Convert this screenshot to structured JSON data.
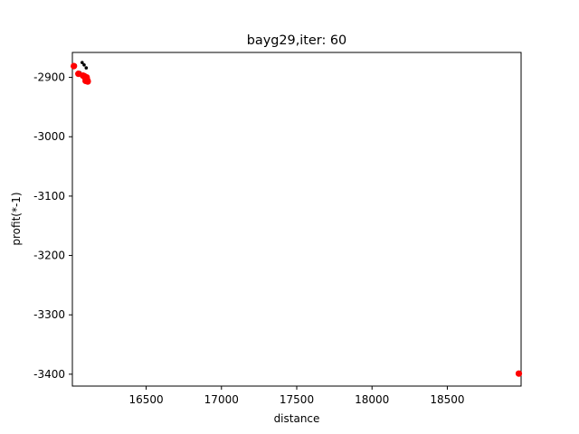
{
  "chart_data": {
    "type": "scatter",
    "title": "bayg29,iter: 60",
    "xlabel": "distance",
    "ylabel": "profit(*-1)",
    "xlim": [
      16010,
      18990
    ],
    "ylim": [
      -3420,
      -2858
    ],
    "xticks": [
      16500,
      17000,
      17500,
      18000,
      18500
    ],
    "yticks": [
      -2900,
      -3000,
      -3100,
      -3200,
      -3300,
      -3400
    ],
    "grid": false,
    "series": [
      {
        "color": "#000000",
        "marker_size": "small",
        "points": [
          [
            16030,
            -2880
          ],
          [
            16060,
            -2892
          ],
          [
            16075,
            -2875
          ],
          [
            16088,
            -2879
          ],
          [
            16102,
            -2884
          ],
          [
            16082,
            -2896
          ],
          [
            16095,
            -2899
          ],
          [
            16100,
            -2902
          ],
          [
            16108,
            -2904
          ],
          [
            16112,
            -2906
          ]
        ]
      },
      {
        "color": "#ff0000",
        "marker_size": "large",
        "points": [
          [
            16020,
            -2881
          ],
          [
            16050,
            -2894
          ],
          [
            16080,
            -2897
          ],
          [
            16090,
            -2898
          ],
          [
            16095,
            -2901
          ],
          [
            16100,
            -2903
          ],
          [
            16105,
            -2900
          ],
          [
            16110,
            -2905
          ],
          [
            16112,
            -2907
          ],
          [
            16098,
            -2906
          ],
          [
            18975,
            -3399
          ]
        ]
      }
    ]
  }
}
